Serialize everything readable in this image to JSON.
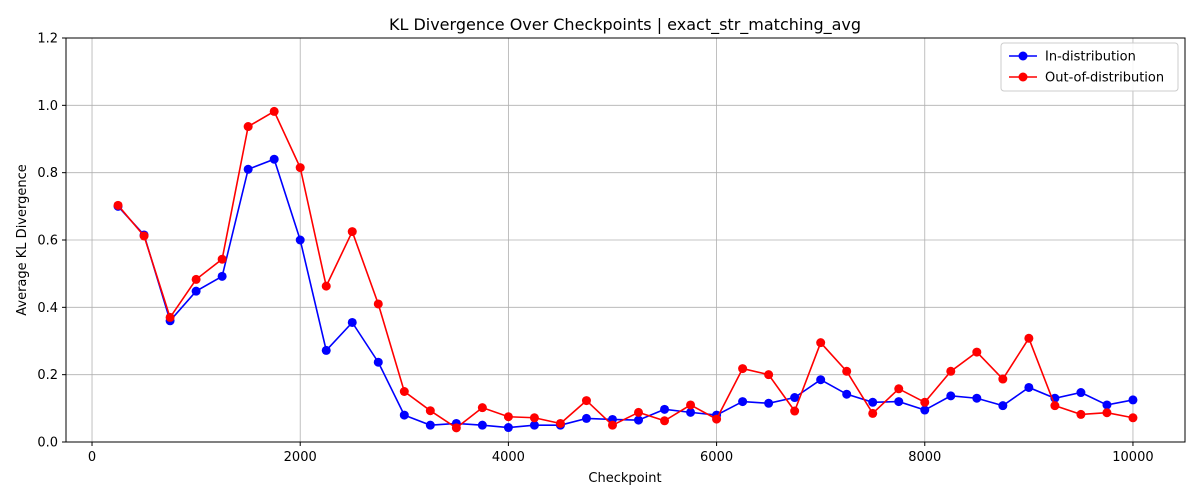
{
  "chart_data": {
    "type": "line",
    "title": "KL Divergence Over Checkpoints | exact_str_matching_avg",
    "xlabel": "Checkpoint",
    "ylabel": "Average KL Divergence",
    "xlim": [
      -250,
      10500
    ],
    "ylim": [
      0,
      1.2
    ],
    "xticks": [
      0,
      2000,
      4000,
      6000,
      8000,
      10000
    ],
    "yticks": [
      0.0,
      0.2,
      0.4,
      0.6,
      0.8,
      1.0,
      1.2
    ],
    "ytick_labels": [
      "0.0",
      "0.2",
      "0.4",
      "0.6",
      "0.8",
      "1.0",
      "1.2"
    ],
    "grid": true,
    "legend": "top-right",
    "x": [
      250,
      500,
      750,
      1000,
      1250,
      1500,
      1750,
      2000,
      2250,
      2500,
      2750,
      3000,
      3250,
      3500,
      3750,
      4000,
      4250,
      4500,
      4750,
      5000,
      5250,
      5500,
      5750,
      6000,
      6250,
      6500,
      6750,
      7000,
      7250,
      7500,
      7750,
      8000,
      8250,
      8500,
      8750,
      9000,
      9250,
      9500,
      9750,
      10000
    ],
    "series": [
      {
        "name": "In-distribution",
        "color": "#0000ff",
        "values": [
          0.7,
          0.615,
          0.36,
          0.448,
          0.492,
          0.81,
          0.84,
          0.6,
          0.272,
          0.355,
          0.237,
          0.08,
          0.05,
          0.055,
          0.05,
          0.043,
          0.05,
          0.05,
          0.07,
          0.067,
          0.065,
          0.097,
          0.088,
          0.08,
          0.12,
          0.115,
          0.132,
          0.185,
          0.142,
          0.118,
          0.12,
          0.095,
          0.137,
          0.13,
          0.108,
          0.162,
          0.13,
          0.147,
          0.11,
          0.125
        ]
      },
      {
        "name": "Out-of-distribution",
        "color": "#ff0000",
        "values": [
          0.703,
          0.612,
          0.37,
          0.483,
          0.543,
          0.937,
          0.982,
          0.815,
          0.463,
          0.625,
          0.41,
          0.15,
          0.093,
          0.042,
          0.102,
          0.075,
          0.072,
          0.055,
          0.123,
          0.05,
          0.088,
          0.063,
          0.11,
          0.068,
          0.218,
          0.2,
          0.092,
          0.295,
          0.21,
          0.085,
          0.158,
          0.118,
          0.21,
          0.267,
          0.187,
          0.308,
          0.108,
          0.082,
          0.087,
          0.072
        ]
      }
    ]
  }
}
